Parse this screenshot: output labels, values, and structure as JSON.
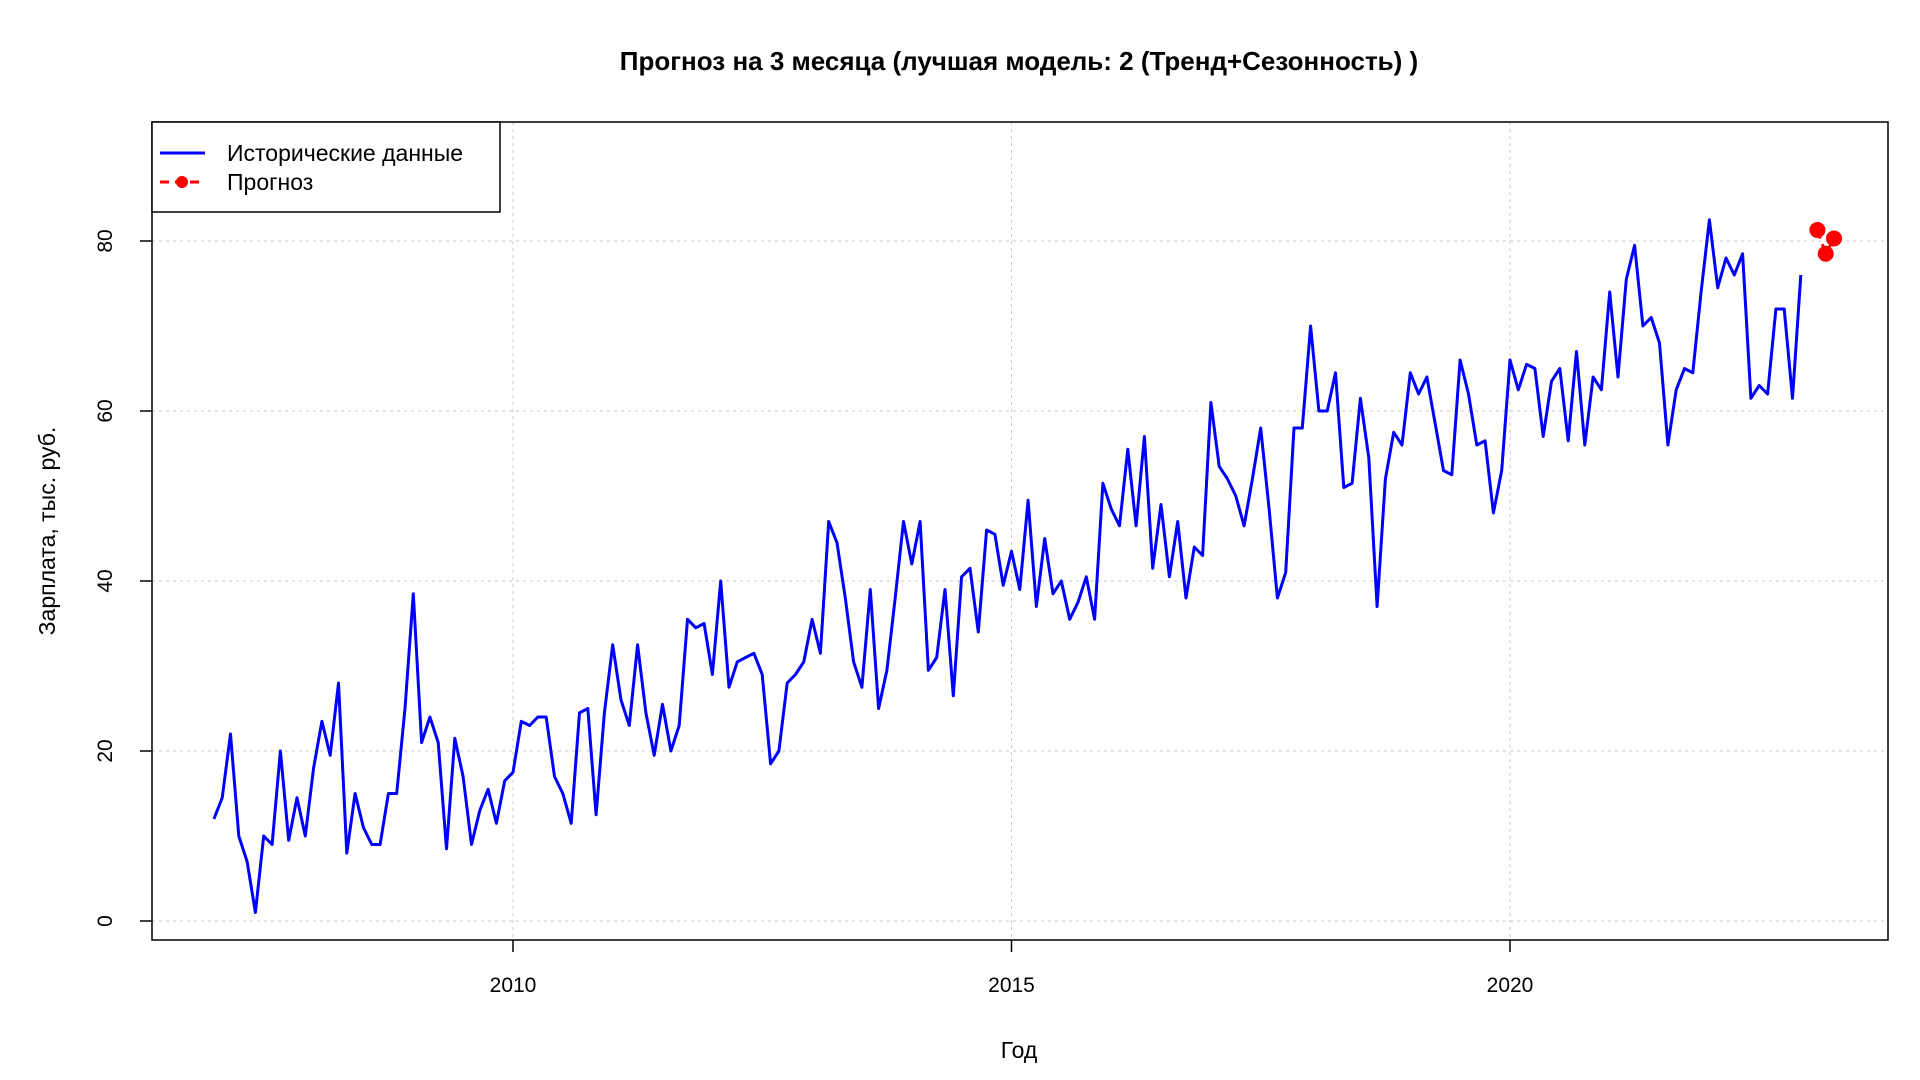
{
  "chart_data": {
    "type": "line",
    "title": "Прогноз на 3 месяца (лучшая модель: 2 (Тренд+Сезонность) )",
    "xlabel": "Год",
    "ylabel": "Зарплата, тыс. руб.",
    "xlim": [
      2007,
      2023.7
    ],
    "ylim": [
      0,
      90
    ],
    "x_ticks": [
      2010,
      2015,
      2020
    ],
    "y_ticks": [
      0,
      20,
      40,
      60,
      80
    ],
    "grid": true,
    "legend_position": "top-left",
    "series": [
      {
        "name": "Исторические данные",
        "color": "#0000ff",
        "style": "solid line",
        "x_start": 2007.0,
        "x_step": 0.0833333,
        "values": [
          12.0,
          14.5,
          22.0,
          10.0,
          7.0,
          1.0,
          10.0,
          9.0,
          20.0,
          9.5,
          14.5,
          10.0,
          18.0,
          23.5,
          19.5,
          28.0,
          8.0,
          15.0,
          11.0,
          9.0,
          9.0,
          15.0,
          15.0,
          25.0,
          38.5,
          21.0,
          24.0,
          21.0,
          8.5,
          21.5,
          17.0,
          9.0,
          13.0,
          15.5,
          11.5,
          16.5,
          17.5,
          23.5,
          23.0,
          24.0,
          24.0,
          17.0,
          15.0,
          11.5,
          24.5,
          25.0,
          12.5,
          24.5,
          32.5,
          26.0,
          23.0,
          32.5,
          24.5,
          19.5,
          25.5,
          20.0,
          23.0,
          35.5,
          34.5,
          35.0,
          29.0,
          40.0,
          27.5,
          30.5,
          31.0,
          31.5,
          29.0,
          18.5,
          20.0,
          28.0,
          29.0,
          30.5,
          35.5,
          31.5,
          47.0,
          44.5,
          38.0,
          30.5,
          27.5,
          39.0,
          25.0,
          29.5,
          38.0,
          47.0,
          42.0,
          47.0,
          29.5,
          31.0,
          39.0,
          26.5,
          40.5,
          41.5,
          34.0,
          46.0,
          45.5,
          39.5,
          43.5,
          39.0,
          49.5,
          37.0,
          45.0,
          38.5,
          40.0,
          35.5,
          37.5,
          40.5,
          35.5,
          51.5,
          48.5,
          46.5,
          55.5,
          46.5,
          57.0,
          41.5,
          49.0,
          40.5,
          47.0,
          38.0,
          44.0,
          43.0,
          61.0,
          53.5,
          52.0,
          50.0,
          46.5,
          52.0,
          58.0,
          48.5,
          38.0,
          41.0,
          58.0,
          58.0,
          70.0,
          60.0,
          60.0,
          64.5,
          51.0,
          51.5,
          61.5,
          54.5,
          37.0,
          52.0,
          57.5,
          56.0,
          64.5,
          62.0,
          64.0,
          58.5,
          53.0,
          52.5,
          66.0,
          62.0,
          56.0,
          56.5,
          48.0,
          53.0,
          66.0,
          62.5,
          65.5,
          65.0,
          57.0,
          63.5,
          65.0,
          56.5,
          67.0,
          56.0,
          64.0,
          62.5,
          74.0,
          64.0,
          75.5,
          79.5,
          70.0,
          71.0,
          68.0,
          56.0,
          62.5,
          65.0,
          64.5,
          74.0,
          82.5,
          74.5,
          78.0,
          76.0,
          78.5,
          61.5,
          63.0,
          62.0,
          72.0,
          72.0,
          61.5,
          76.0
        ]
      },
      {
        "name": "Прогноз",
        "color": "#ff0000",
        "style": "dashed line with points",
        "x": [
          2023.0833,
          2023.1667,
          2023.25
        ],
        "values": [
          81.3,
          78.5,
          80.3
        ]
      }
    ]
  }
}
